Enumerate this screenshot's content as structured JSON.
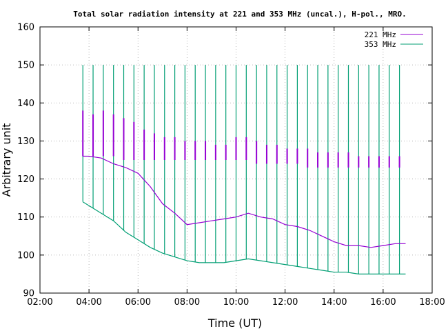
{
  "chart_data": {
    "type": "line",
    "title": "Total solar radiation intensity at 221 and 353 MHz (uncal.), H-pol., MRO.",
    "xlabel": "Time (UT)",
    "ylabel": "Arbitrary unit",
    "xlim": [
      "02:00",
      "18:00"
    ],
    "ylim": [
      90,
      160
    ],
    "x_ticks": [
      "02:00",
      "04:00",
      "06:00",
      "08:00",
      "10:00",
      "12:00",
      "14:00",
      "16:00",
      "18:00"
    ],
    "y_ticks": [
      90,
      100,
      110,
      120,
      130,
      140,
      150,
      160
    ],
    "grid": true,
    "legend_position": "top-right",
    "series": [
      {
        "name": "221 MHz",
        "color": "#9400d3",
        "baseline": {
          "x": [
            "03:45",
            "04:00",
            "04:30",
            "05:00",
            "05:30",
            "06:00",
            "06:30",
            "07:00",
            "07:30",
            "08:00",
            "08:30",
            "09:00",
            "09:30",
            "10:00",
            "10:30",
            "11:00",
            "11:30",
            "12:00",
            "12:30",
            "13:00",
            "13:30",
            "14:00",
            "14:30",
            "15:00",
            "15:30",
            "16:00",
            "16:30",
            "16:55"
          ],
          "y": [
            126,
            126,
            125.5,
            124,
            123,
            121.5,
            118,
            113.5,
            111,
            108,
            108.5,
            109,
            109.5,
            110,
            111,
            110,
            109.5,
            108,
            107.5,
            106.5,
            105,
            103.5,
            102.5,
            102.5,
            102,
            102.5,
            103,
            103
          ]
        },
        "spikes": {
          "x": [
            "03:45",
            "04:10",
            "04:35",
            "05:00",
            "05:25",
            "05:50",
            "06:15",
            "06:40",
            "07:05",
            "07:30",
            "07:55",
            "08:20",
            "08:45",
            "09:10",
            "09:35",
            "10:00",
            "10:25",
            "10:50",
            "11:15",
            "11:40",
            "12:05",
            "12:30",
            "12:55",
            "13:20",
            "13:45",
            "14:10",
            "14:35",
            "15:00",
            "15:25",
            "15:50",
            "16:15",
            "16:40"
          ],
          "low": [
            126,
            126,
            126,
            126,
            125,
            125,
            125,
            125,
            125,
            125,
            125,
            125,
            125,
            125,
            125,
            125,
            125,
            124,
            124,
            124,
            124,
            124,
            123,
            123,
            123,
            123,
            123,
            123,
            123,
            123,
            123,
            123
          ],
          "high": [
            138,
            137,
            138,
            137,
            136,
            135,
            133,
            132,
            131,
            131,
            130,
            130,
            130,
            129,
            129,
            131,
            131,
            130,
            129,
            129,
            128,
            128,
            128,
            127,
            127,
            127,
            127,
            126,
            126,
            126,
            126,
            126
          ]
        }
      },
      {
        "name": "353 MHz",
        "color": "#009e73",
        "baseline": {
          "x": [
            "03:45",
            "04:00",
            "04:30",
            "05:00",
            "05:30",
            "06:00",
            "06:30",
            "07:00",
            "07:30",
            "08:00",
            "08:30",
            "09:00",
            "09:30",
            "10:00",
            "10:30",
            "11:00",
            "11:30",
            "12:00",
            "12:30",
            "13:00",
            "13:30",
            "14:00",
            "14:30",
            "15:00",
            "15:30",
            "16:00",
            "16:30",
            "16:55"
          ],
          "y": [
            114,
            113,
            111,
            109,
            106,
            104,
            102,
            100.5,
            99.5,
            98.5,
            98,
            98,
            98,
            98.5,
            99,
            98.5,
            98,
            97.5,
            97,
            96.5,
            96,
            95.5,
            95.5,
            95,
            95,
            95,
            95,
            95
          ]
        },
        "spikes": {
          "x": [
            "03:45",
            "04:10",
            "04:35",
            "05:00",
            "05:25",
            "05:50",
            "06:15",
            "06:40",
            "07:05",
            "07:30",
            "07:55",
            "08:20",
            "08:45",
            "09:10",
            "09:35",
            "10:00",
            "10:25",
            "10:50",
            "11:15",
            "11:40",
            "12:05",
            "12:30",
            "12:55",
            "13:20",
            "13:45",
            "14:10",
            "14:35",
            "15:00",
            "15:25",
            "15:50",
            "16:15",
            "16:40"
          ],
          "high": [
            150,
            150,
            150,
            150,
            150,
            150,
            150,
            150,
            150,
            150,
            150,
            150,
            150,
            150,
            150,
            150,
            150,
            150,
            150,
            150,
            150,
            150,
            150,
            150,
            150,
            150,
            150,
            150,
            150,
            150,
            150,
            150
          ]
        }
      }
    ]
  }
}
